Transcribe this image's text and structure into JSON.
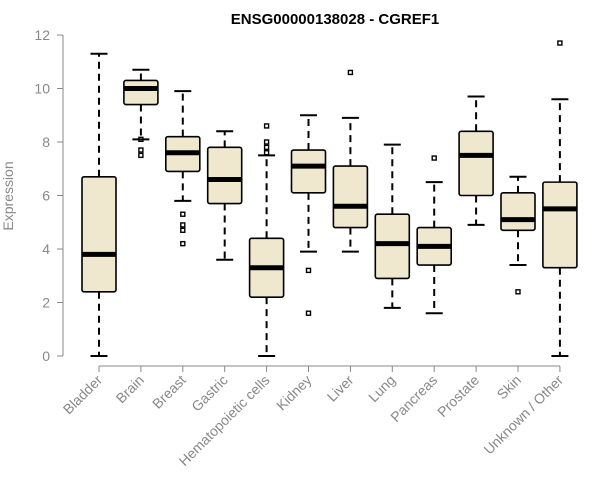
{
  "chart_data": {
    "type": "box",
    "title": "ENSG00000138028 - CGREF1",
    "xlabel": "",
    "ylabel": "Expression",
    "ylim": [
      0,
      12
    ],
    "yticks": [
      0,
      2,
      4,
      6,
      8,
      10,
      12
    ],
    "colors": {
      "box_fill": "#efe8cf",
      "stroke": "#000000",
      "axis_text": "#888888"
    },
    "grid": false,
    "categories": [
      "Bladder",
      "Brain",
      "Breast",
      "Gastric",
      "Hematopoietic cells",
      "Kidney",
      "Liver",
      "Lung",
      "Pancreas",
      "Prostate",
      "Skin",
      "Unknown / Other"
    ],
    "boxes": [
      {
        "min": 0.0,
        "q1": 2.4,
        "median": 3.8,
        "q3": 6.7,
        "max": 11.3,
        "outliers": []
      },
      {
        "min": 8.1,
        "q1": 9.4,
        "median": 10.0,
        "q3": 10.3,
        "max": 10.7,
        "outliers": [
          8.1,
          7.7,
          7.5
        ]
      },
      {
        "min": 5.8,
        "q1": 6.9,
        "median": 7.6,
        "q3": 8.2,
        "max": 9.9,
        "outliers": [
          5.3,
          4.9,
          4.7,
          4.2
        ]
      },
      {
        "min": 3.6,
        "q1": 5.7,
        "median": 6.6,
        "q3": 7.8,
        "max": 8.4,
        "outliers": []
      },
      {
        "min": 0.0,
        "q1": 2.2,
        "median": 3.3,
        "q3": 4.4,
        "max": 7.5,
        "outliers": [
          8.6,
          8.0,
          7.8,
          7.6
        ]
      },
      {
        "min": 3.9,
        "q1": 6.1,
        "median": 7.1,
        "q3": 7.7,
        "max": 9.0,
        "outliers": [
          3.2,
          1.6
        ]
      },
      {
        "min": 3.9,
        "q1": 4.8,
        "median": 5.6,
        "q3": 7.1,
        "max": 8.9,
        "outliers": [
          10.6
        ]
      },
      {
        "min": 1.8,
        "q1": 2.9,
        "median": 4.2,
        "q3": 5.3,
        "max": 7.9,
        "outliers": []
      },
      {
        "min": 1.6,
        "q1": 3.4,
        "median": 4.1,
        "q3": 4.8,
        "max": 6.5,
        "outliers": [
          7.4
        ]
      },
      {
        "min": 4.9,
        "q1": 6.0,
        "median": 7.5,
        "q3": 8.4,
        "max": 9.7,
        "outliers": []
      },
      {
        "min": 3.4,
        "q1": 4.7,
        "median": 5.1,
        "q3": 6.1,
        "max": 6.7,
        "outliers": [
          2.4
        ]
      },
      {
        "min": 0.0,
        "q1": 3.3,
        "median": 5.5,
        "q3": 6.5,
        "max": 9.6,
        "outliers": [
          11.7
        ]
      }
    ]
  }
}
